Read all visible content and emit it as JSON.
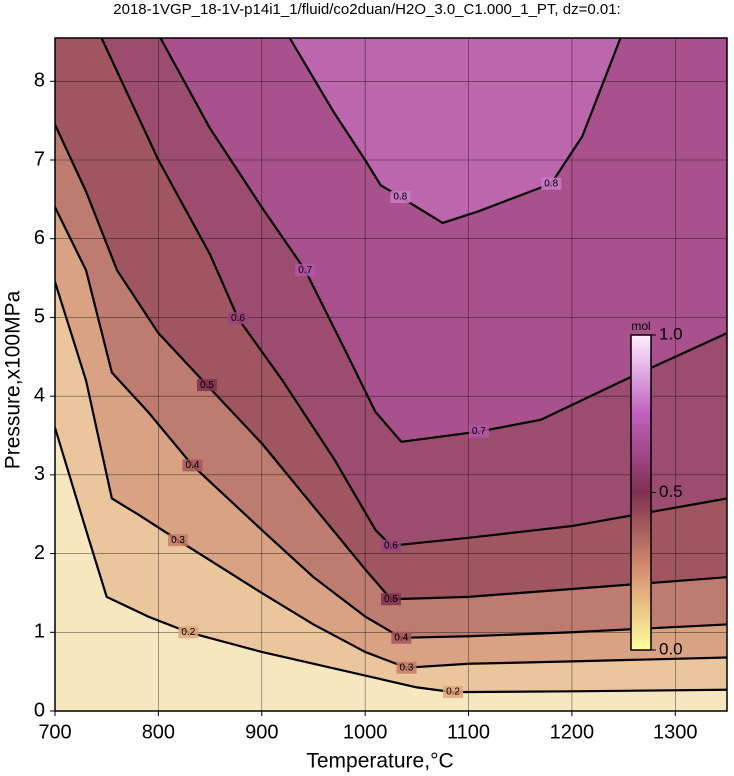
{
  "chart_data": {
    "type": "contour",
    "title": "2018-1VGP_18-1V-p14i1_1/fluid/co2duan/H2O_3.0_C1.000_1_PT, dz=0.01:",
    "x_label": "Temperature,°C",
    "y_label": "Pressure,x100MPa",
    "xlim": [
      700,
      1350
    ],
    "ylim": [
      0,
      8.55
    ],
    "xticks": [
      700,
      800,
      900,
      1000,
      1100,
      1200,
      1300
    ],
    "yticks": [
      0,
      1,
      2,
      3,
      4,
      5,
      6,
      7,
      8
    ],
    "grid": true,
    "colormap": [
      "#ffffa0",
      "#d89070",
      "#803050",
      "#c060c0",
      "#ffeeff"
    ],
    "contours": [
      {
        "level": 0.2,
        "x": [
          700,
          730,
          750,
          790,
          829,
          900,
          1000,
          1050,
          1085,
          1200,
          1350
        ],
        "y": [
          3.6,
          2.3,
          1.45,
          1.2,
          1.0,
          0.75,
          0.45,
          0.3,
          0.24,
          0.25,
          0.27
        ]
      },
      {
        "level": 0.3,
        "x": [
          700,
          730,
          755,
          780,
          819,
          900,
          950,
          1000,
          1040,
          1100,
          1200,
          1350
        ],
        "y": [
          5.45,
          4.2,
          2.7,
          2.5,
          2.17,
          1.5,
          1.1,
          0.75,
          0.55,
          0.6,
          0.63,
          0.68
        ]
      },
      {
        "level": 0.4,
        "x": [
          700,
          730,
          755,
          790,
          833,
          900,
          950,
          1000,
          1035,
          1100,
          1200,
          1350
        ],
        "y": [
          6.4,
          5.6,
          4.3,
          3.8,
          3.12,
          2.3,
          1.7,
          1.2,
          0.93,
          0.95,
          1.0,
          1.1
        ]
      },
      {
        "level": 0.5,
        "x": [
          700,
          730,
          760,
          800,
          847,
          900,
          950,
          1000,
          1025,
          1100,
          1200,
          1350
        ],
        "y": [
          7.45,
          6.6,
          5.6,
          4.8,
          4.14,
          3.4,
          2.6,
          1.8,
          1.42,
          1.45,
          1.55,
          1.7
        ]
      },
      {
        "level": 0.6,
        "x": [
          745,
          800,
          850,
          877,
          920,
          970,
          1010,
          1025,
          1100,
          1200,
          1350
        ],
        "y": [
          8.55,
          7.0,
          5.8,
          4.99,
          4.2,
          3.2,
          2.3,
          2.1,
          2.2,
          2.35,
          2.7
        ]
      },
      {
        "level": 0.7,
        "x": [
          802,
          850,
          900,
          942,
          980,
          1010,
          1035,
          1110,
          1170,
          1250,
          1350
        ],
        "y": [
          8.55,
          7.4,
          6.4,
          5.6,
          4.6,
          3.8,
          3.42,
          3.55,
          3.7,
          4.2,
          4.8
        ]
      },
      {
        "level": 0.8,
        "x": [
          927,
          970,
          1000,
          1015,
          1034,
          1075,
          1110,
          1160,
          1180,
          1210,
          1247
        ],
        "y": [
          8.55,
          7.6,
          7.0,
          6.68,
          6.53,
          6.2,
          6.35,
          6.6,
          6.7,
          7.3,
          8.55
        ]
      }
    ],
    "colorbar": {
      "label": "mol",
      "ticks": [
        {
          "value": 0,
          "label": "0.0"
        },
        {
          "value": 0.5,
          "label": "0.5"
        },
        {
          "value": 1,
          "label": "1.0"
        }
      ]
    }
  }
}
